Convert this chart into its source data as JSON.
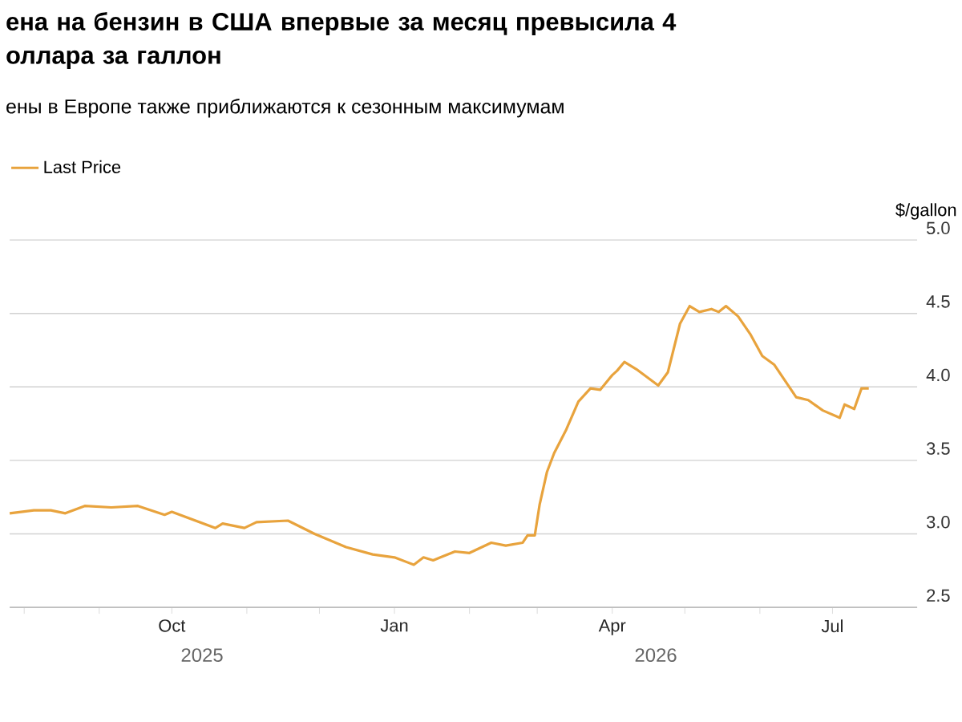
{
  "chart_data": {
    "type": "line",
    "title": "ена на бензин в США впервые за месяц превысила 4 оллара за галлон",
    "subtitle": "ены в Европе также приближаются к сезонным максимумам",
    "ylabel": "$/gallon",
    "x": [
      "2025-07-26",
      "2025-08-05",
      "2025-08-12",
      "2025-08-18",
      "2025-08-26",
      "2025-09-06",
      "2025-09-17",
      "2025-09-28",
      "2025-10-01",
      "2025-10-19",
      "2025-10-22",
      "2025-10-31",
      "2025-11-05",
      "2025-11-18",
      "2025-11-29",
      "2025-12-12",
      "2025-12-23",
      "2026-01-01",
      "2026-01-09",
      "2026-01-13",
      "2026-01-17",
      "2026-01-20",
      "2026-01-26",
      "2026-02-01",
      "2026-02-10",
      "2026-02-16",
      "2026-02-23",
      "2026-02-25",
      "2026-02-28",
      "2026-03-02",
      "2026-03-05",
      "2026-03-08",
      "2026-03-13",
      "2026-03-18",
      "2026-03-23",
      "2026-03-27",
      "2026-04-01",
      "2026-04-03",
      "2026-04-06",
      "2026-04-11",
      "2026-04-20",
      "2026-04-24",
      "2026-04-29",
      "2026-05-03",
      "2026-05-07",
      "2026-05-12",
      "2026-05-15",
      "2026-05-18",
      "2026-05-23",
      "2026-05-28",
      "2026-06-02",
      "2026-06-07",
      "2026-06-16",
      "2026-06-21",
      "2026-06-27",
      "2026-07-04",
      "2026-07-06",
      "2026-07-10",
      "2026-07-13",
      "2026-07-16"
    ],
    "series": [
      {
        "name": "Last Price",
        "color": "#e8a33d",
        "values": [
          3.14,
          3.16,
          3.16,
          3.14,
          3.19,
          3.18,
          3.19,
          3.13,
          3.15,
          3.04,
          3.07,
          3.04,
          3.08,
          3.09,
          3.0,
          2.91,
          2.86,
          2.84,
          2.79,
          2.84,
          2.82,
          2.84,
          2.88,
          2.87,
          2.94,
          2.92,
          2.94,
          2.99,
          2.99,
          3.2,
          3.42,
          3.55,
          3.71,
          3.9,
          3.99,
          3.98,
          4.08,
          4.11,
          4.17,
          4.12,
          4.01,
          4.1,
          4.43,
          4.55,
          4.51,
          4.53,
          4.51,
          4.55,
          4.48,
          4.36,
          4.21,
          4.15,
          3.93,
          3.91,
          3.84,
          3.79,
          3.88,
          3.85,
          3.99,
          3.99
        ]
      }
    ],
    "xlim": [
      "2025-07-26",
      "2026-08-05"
    ],
    "xticks": [
      {
        "value": "2025-08-01",
        "label": null
      },
      {
        "value": "2025-09-01",
        "label": null
      },
      {
        "value": "2025-10-01",
        "label": "Oct"
      },
      {
        "value": "2025-11-01",
        "label": null
      },
      {
        "value": "2025-12-01",
        "label": null
      },
      {
        "value": "2026-01-01",
        "label": "Jan"
      },
      {
        "value": "2026-02-01",
        "label": null
      },
      {
        "value": "2026-03-01",
        "label": null
      },
      {
        "value": "2026-04-01",
        "label": "Apr"
      },
      {
        "value": "2026-05-01",
        "label": null
      },
      {
        "value": "2026-06-01",
        "label": null
      },
      {
        "value": "2026-07-01",
        "label": "Jul"
      }
    ],
    "ylim": [
      2.5,
      5.0
    ],
    "yticks": [
      {
        "value": 2.5,
        "label": "2.5"
      },
      {
        "value": 3.0,
        "label": "3.0"
      },
      {
        "value": 3.5,
        "label": "3.5"
      },
      {
        "value": 4.0,
        "label": "4.0"
      },
      {
        "value": 4.5,
        "label": "4.5"
      },
      {
        "value": 5.0,
        "label": "5.0"
      }
    ],
    "annotations": [
      "2025",
      "2026"
    ],
    "grid": "y",
    "legend": "top left"
  }
}
